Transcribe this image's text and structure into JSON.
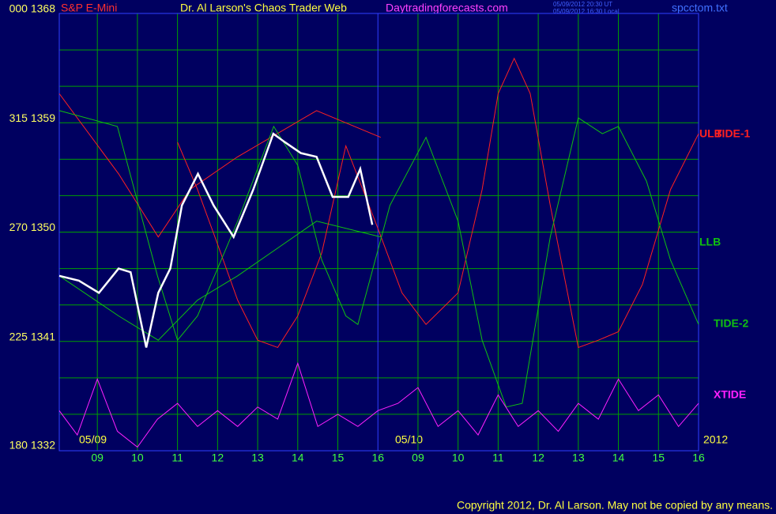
{
  "chart_data": {
    "type": "line",
    "title": "Dr. Al Larson's Chaos Trader Web",
    "instrument": "S&P E-Mini",
    "site": "Daytradingforecasts.com",
    "timestamps": [
      "05/09/2012 20:30 UT",
      "05/09/2012 16:30 Local"
    ],
    "file": "spcctom.txt",
    "copyright": "Copyright 2012, Dr. Al Larson. May not be copied by any means.",
    "date_labels": [
      "05/09",
      "05/10",
      "2012"
    ],
    "xlim": [
      0.05,
      16
    ],
    "xticks": [
      {
        "value": 1,
        "label": "09"
      },
      {
        "value": 2,
        "label": "10"
      },
      {
        "value": 3,
        "label": "11"
      },
      {
        "value": 4,
        "label": "12"
      },
      {
        "value": 5,
        "label": "13"
      },
      {
        "value": 6,
        "label": "14"
      },
      {
        "value": 7,
        "label": "15"
      },
      {
        "value": 8,
        "label": "16"
      },
      {
        "value": 9,
        "label": "09"
      },
      {
        "value": 10,
        "label": "10"
      },
      {
        "value": 11,
        "label": "11"
      },
      {
        "value": 12,
        "label": "12"
      },
      {
        "value": 13,
        "label": "13"
      },
      {
        "value": 14,
        "label": "14"
      },
      {
        "value": 15,
        "label": "15"
      },
      {
        "value": 16,
        "label": "16"
      }
    ],
    "ylim": [
      1332,
      1368
    ],
    "yticks": [
      {
        "value": 1368,
        "label": "000 1368"
      },
      {
        "value": 1359,
        "label": "315 1359"
      },
      {
        "value": 1350,
        "label": "270 1350"
      },
      {
        "value": 1341,
        "label": "225 1341"
      },
      {
        "value": 1332,
        "label": "180 1332"
      }
    ],
    "minor_yticks": [
      1365,
      1362,
      1356,
      1353,
      1347,
      1344,
      1338,
      1335
    ],
    "grid": true,
    "series": [
      {
        "name": "ULB",
        "color": "#ff2020",
        "x": [
          0.05,
          1.53,
          2.52,
          3.31,
          4.5,
          6.47,
          8.07
        ],
        "values": [
          1361.4,
          1354.8,
          1349.6,
          1353.5,
          1356.2,
          1360.0,
          1357.8
        ]
      },
      {
        "name": "LLB",
        "color": "#10c010",
        "x": [
          0.05,
          1.53,
          2.52,
          3.5,
          4.5,
          6.47,
          8.07
        ],
        "values": [
          1346.4,
          1343.1,
          1341.1,
          1344.4,
          1346.4,
          1350.9,
          1349.6
        ]
      },
      {
        "name": "TIDE-1",
        "color": "#ff2020",
        "x": [
          3.0,
          3.5,
          4.0,
          4.5,
          5.0,
          5.5,
          6.0,
          6.6,
          7.2,
          8.0,
          8.6,
          9.2,
          10.0,
          10.6,
          11.0,
          11.4,
          11.8,
          12.3,
          13.0,
          13.5,
          14.0,
          14.6,
          15.3,
          16.0
        ],
        "values": [
          1357.4,
          1353.5,
          1349.0,
          1344.4,
          1341.1,
          1340.5,
          1343.1,
          1348.3,
          1357.1,
          1350.3,
          1345.0,
          1342.4,
          1345.0,
          1353.5,
          1361.4,
          1364.3,
          1361.4,
          1352.2,
          1340.5,
          1341.1,
          1341.8,
          1345.7,
          1353.5,
          1358.1
        ]
      },
      {
        "name": "TIDE-2",
        "color": "#10c010",
        "x": [
          0.05,
          1.5,
          2.5,
          3.0,
          3.5,
          4.5,
          5.4,
          6.0,
          6.6,
          7.2,
          7.5,
          8.3,
          9.2,
          10.0,
          10.6,
          11.2,
          11.6,
          12.3,
          13.0,
          13.6,
          14.0,
          14.7,
          15.3,
          16.0
        ],
        "values": [
          1360.0,
          1358.7,
          1346.4,
          1341.1,
          1343.1,
          1350.9,
          1358.7,
          1355.5,
          1347.7,
          1343.1,
          1342.4,
          1352.2,
          1357.8,
          1350.9,
          1341.1,
          1335.6,
          1335.9,
          1349.6,
          1359.4,
          1358.1,
          1358.7,
          1354.2,
          1347.7,
          1342.4
        ]
      },
      {
        "name": "XTIDE",
        "color": "#ff20ff",
        "x": [
          0.05,
          0.5,
          1,
          1.5,
          2,
          2.5,
          3,
          3.5,
          4,
          4.5,
          5,
          5.5,
          6,
          6.5,
          7,
          7.5,
          8,
          8.5,
          9,
          9.5,
          10,
          10.5,
          11,
          11.5,
          12,
          12.5,
          13,
          13.5,
          14,
          14.5,
          15,
          15.5,
          16
        ],
        "values": [
          1335.3,
          1333.3,
          1337.9,
          1333.6,
          1332.3,
          1334.6,
          1335.9,
          1334.0,
          1335.3,
          1334.0,
          1335.6,
          1334.6,
          1339.2,
          1334.0,
          1335.0,
          1334.0,
          1335.3,
          1335.9,
          1337.2,
          1334.0,
          1335.3,
          1333.3,
          1336.6,
          1334.0,
          1335.3,
          1333.6,
          1335.9,
          1334.6,
          1337.9,
          1335.3,
          1336.6,
          1334.0,
          1335.9
        ]
      },
      {
        "color": "#ffffff",
        "x": [
          0.05,
          0.54,
          1.04,
          1.53,
          1.83,
          2.22,
          2.52,
          2.82,
          3.11,
          3.51,
          3.9,
          4.4,
          4.89,
          5.39,
          5.68,
          6.08,
          6.47,
          6.87,
          7.26,
          7.56,
          7.86
        ],
        "values": [
          1346.4,
          1346.0,
          1345.0,
          1347.0,
          1346.7,
          1340.5,
          1345.0,
          1347.0,
          1352.2,
          1354.8,
          1352.2,
          1349.6,
          1353.5,
          1358.1,
          1357.4,
          1356.5,
          1356.2,
          1352.9,
          1352.9,
          1355.2,
          1350.6
        ]
      }
    ]
  }
}
